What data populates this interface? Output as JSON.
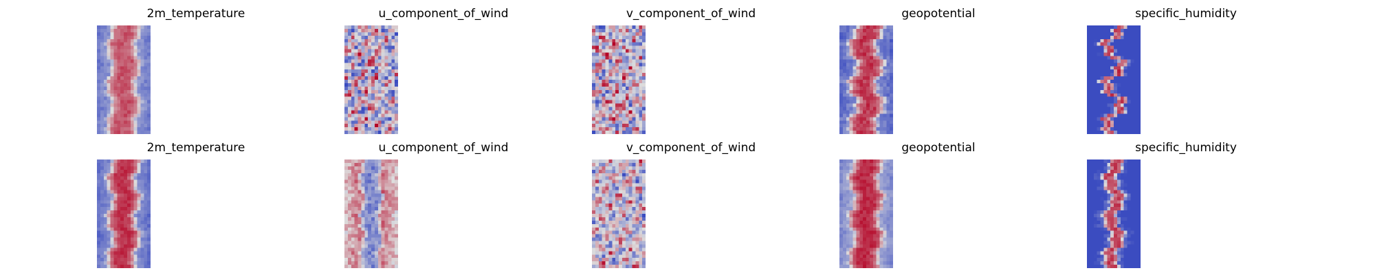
{
  "chart_data": {
    "type": "heatmap",
    "colormap": "coolwarm",
    "colors": {
      "low": "#3b4cc0",
      "mid": "#dddddd",
      "high": "#b40426"
    },
    "grid": false,
    "axes_visible": false,
    "rows": [
      [
        {
          "title": "2m_temperature",
          "pattern": "warm_band",
          "center_level": 0.82,
          "edge_level": 0.25,
          "band_width": 0.62,
          "waviness": 0.05,
          "noise": 0.06,
          "seed": 11
        },
        {
          "title": "u_component_of_wind",
          "pattern": "turbulent",
          "center_level": 0.55,
          "edge_level": 0.4,
          "band_width": 0.5,
          "waviness": 0.1,
          "noise": 0.28,
          "seed": 23
        },
        {
          "title": "v_component_of_wind",
          "pattern": "turbulent",
          "center_level": 0.52,
          "edge_level": 0.48,
          "band_width": 0.5,
          "waviness": 0.1,
          "noise": 0.3,
          "seed": 37
        },
        {
          "title": "geopotential",
          "pattern": "warm_band",
          "center_level": 0.88,
          "edge_level": 0.2,
          "band_width": 0.6,
          "waviness": 0.08,
          "noise": 0.07,
          "seed": 41
        },
        {
          "title": "specific_humidity",
          "pattern": "narrow_band",
          "center_level": 0.85,
          "edge_level": 0.05,
          "band_width": 0.22,
          "waviness": 0.15,
          "noise": 0.1,
          "seed": 53
        }
      ],
      [
        {
          "title": "2m_temperature",
          "pattern": "warm_band",
          "center_level": 0.9,
          "edge_level": 0.22,
          "band_width": 0.6,
          "waviness": 0.06,
          "noise": 0.05,
          "seed": 61
        },
        {
          "title": "u_component_of_wind",
          "pattern": "cool_center",
          "center_level": 0.2,
          "edge_level": 0.75,
          "band_width": 0.42,
          "waviness": 0.04,
          "noise": 0.12,
          "seed": 73
        },
        {
          "title": "v_component_of_wind",
          "pattern": "turbulent",
          "center_level": 0.45,
          "edge_level": 0.5,
          "band_width": 0.5,
          "waviness": 0.05,
          "noise": 0.22,
          "seed": 89
        },
        {
          "title": "geopotential",
          "pattern": "warm_band",
          "center_level": 0.92,
          "edge_level": 0.3,
          "band_width": 0.62,
          "waviness": 0.06,
          "noise": 0.05,
          "seed": 97
        },
        {
          "title": "specific_humidity",
          "pattern": "narrow_band",
          "center_level": 0.85,
          "edge_level": 0.1,
          "band_width": 0.3,
          "waviness": 0.08,
          "noise": 0.07,
          "seed": 101
        }
      ]
    ]
  }
}
